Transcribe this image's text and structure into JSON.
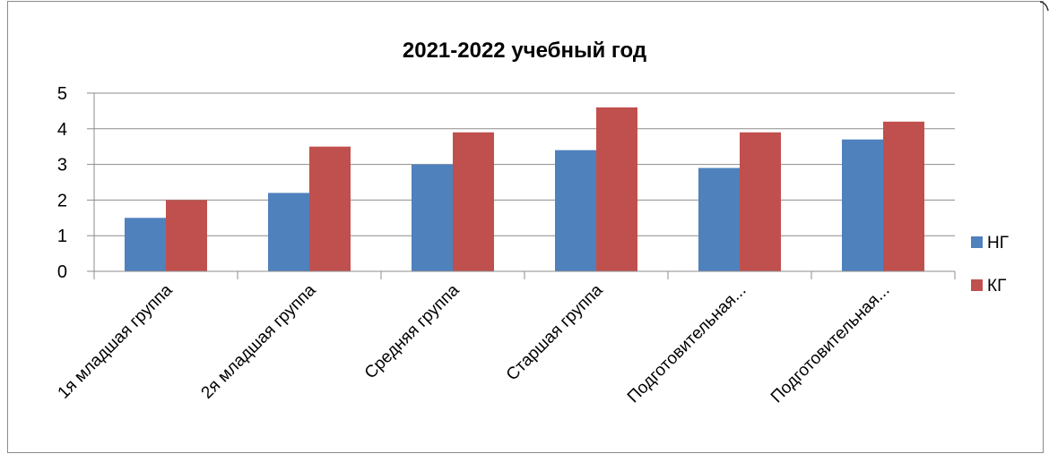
{
  "chart_data": {
    "type": "bar",
    "title": "2021-2022 учебный год",
    "xlabel": "",
    "ylabel": "",
    "categories": [
      "1я младшая группа",
      "2я младшая группа",
      "Средняя группа",
      "Старшая группа",
      "Подготовительная...",
      "Подготовительная..."
    ],
    "series": [
      {
        "name": "НГ",
        "color": "#4F81BD",
        "values": [
          1.5,
          2.2,
          3.0,
          3.4,
          2.9,
          3.7
        ]
      },
      {
        "name": "КГ",
        "color": "#C0504D",
        "values": [
          2.0,
          3.5,
          3.9,
          4.6,
          3.9,
          4.2
        ]
      }
    ],
    "ylim": [
      0,
      5
    ],
    "yticks": [
      "0",
      "1",
      "2",
      "3",
      "4",
      "5"
    ],
    "grid": true,
    "legend": "right"
  }
}
